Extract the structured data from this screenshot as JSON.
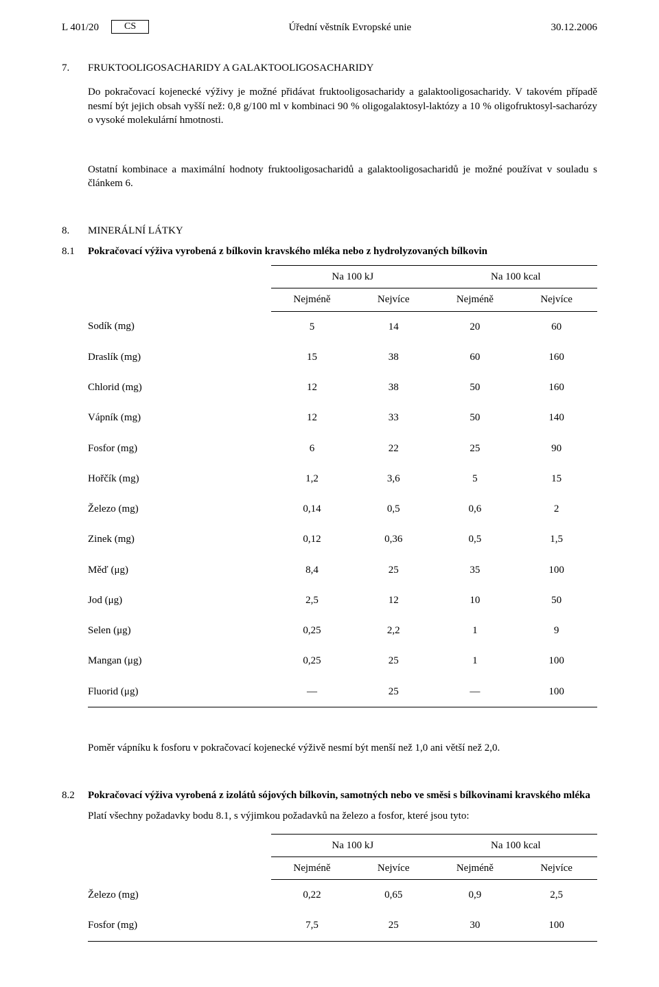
{
  "header": {
    "left": "L 401/20",
    "lang": "CS",
    "center": "Úřední věstník Evropské unie",
    "right": "30.12.2006"
  },
  "s7": {
    "num": "7.",
    "title": "FRUKTOOLIGOSACHARIDY A GALAKTOOLIGOSACHARIDY",
    "p1": "Do pokračovací kojenecké výživy je možné přidávat fruktooligosacharidy a galaktooligosacharidy. V takovém případě nesmí být jejich obsah vyšší než: 0,8 g/100 ml v kombinaci 90 % oligogalaktosyl-laktózy a 10 % oligofruktosyl-sacharózy o vysoké molekulární hmotnosti.",
    "p2": "Ostatní kombinace a maximální hodnoty fruktooligosacharidů a galaktooligosacharidů je možné používat v souladu s článkem 6."
  },
  "s8": {
    "num": "8.",
    "title": "MINERÁLNÍ LÁTKY",
    "s81_num": "8.1",
    "s81_title": "Pokračovací výživa vyrobená z bílkovin kravského mléka nebo z hydrolyzovaných bílkovin",
    "headers": {
      "group1": "Na 100 kJ",
      "group2": "Na 100 kcal",
      "sub_min": "Nejméně",
      "sub_max": "Nejvíce"
    },
    "table1": {
      "rows": [
        {
          "label": "Sodík (mg)",
          "v": [
            "5",
            "14",
            "20",
            "60"
          ]
        },
        {
          "label": "Draslík (mg)",
          "v": [
            "15",
            "38",
            "60",
            "160"
          ]
        },
        {
          "label": "Chlorid (mg)",
          "v": [
            "12",
            "38",
            "50",
            "160"
          ]
        },
        {
          "label": "Vápník (mg)",
          "v": [
            "12",
            "33",
            "50",
            "140"
          ]
        },
        {
          "label": "Fosfor (mg)",
          "v": [
            "6",
            "22",
            "25",
            "90"
          ]
        },
        {
          "label": "Hořčík (mg)",
          "v": [
            "1,2",
            "3,6",
            "5",
            "15"
          ]
        },
        {
          "label": "Železo (mg)",
          "v": [
            "0,14",
            "0,5",
            "0,6",
            "2"
          ]
        },
        {
          "label": "Zinek (mg)",
          "v": [
            "0,12",
            "0,36",
            "0,5",
            "1,5"
          ]
        },
        {
          "label": "Měď (μg)",
          "v": [
            "8,4",
            "25",
            "35",
            "100"
          ]
        },
        {
          "label": "Jod (μg)",
          "v": [
            "2,5",
            "12",
            "10",
            "50"
          ]
        },
        {
          "label": "Selen (μg)",
          "v": [
            "0,25",
            "2,2",
            "1",
            "9"
          ]
        },
        {
          "label": "Mangan (μg)",
          "v": [
            "0,25",
            "25",
            "1",
            "100"
          ]
        },
        {
          "label": "Fluorid (μg)",
          "v": [
            "—",
            "25",
            "—",
            "100"
          ]
        }
      ]
    },
    "s81_note": "Poměr vápníku k fosforu v pokračovací kojenecké výživě nesmí být menší než 1,0 ani větší než 2,0.",
    "s82_num": "8.2",
    "s82_title": "Pokračovací výživa vyrobená z izolátů sójových bílkovin, samotných nebo ve směsi s bílkovinami kravského mléka",
    "s82_p": "Platí všechny požadavky bodu 8.1, s výjimkou požadavků na železo a fosfor, které jsou tyto:",
    "table2": {
      "rows": [
        {
          "label": "Železo (mg)",
          "v": [
            "0,22",
            "0,65",
            "0,9",
            "2,5"
          ]
        },
        {
          "label": "Fosfor (mg)",
          "v": [
            "7,5",
            "25",
            "30",
            "100"
          ]
        }
      ]
    }
  }
}
